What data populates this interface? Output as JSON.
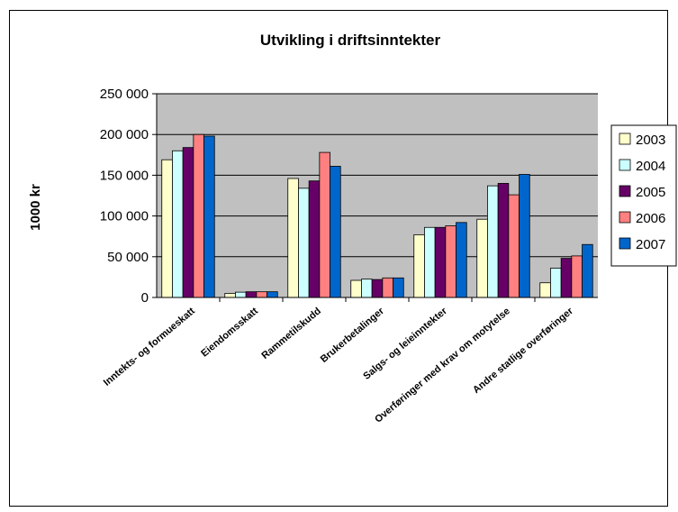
{
  "chart_data": {
    "type": "bar",
    "title": "Utvikling i driftsinntekter",
    "xlabel": "",
    "ylabel": "1000 kr",
    "ylim": [
      0,
      250000
    ],
    "yticks": [
      0,
      50000,
      100000,
      150000,
      200000,
      250000
    ],
    "ytick_labels": [
      "0",
      "50 000",
      "100 000",
      "150 000",
      "200 000",
      "250 000"
    ],
    "grid": true,
    "legend_position": "right",
    "plot_background": "#c0c0c0",
    "categories": [
      "Inntekts- og formueskatt",
      "Eiendomsskatt",
      "Rammetilskudd",
      "Brukerbetalinger",
      "Salgs- og leieinntekter",
      "Overføringer med krav om motytelse",
      "Andre statlige overføringer"
    ],
    "series": [
      {
        "name": "2003",
        "color": "#ffffcc",
        "values": [
          169000,
          5000,
          146000,
          21000,
          77000,
          96000,
          18000
        ]
      },
      {
        "name": "2004",
        "color": "#ccffff",
        "values": [
          180000,
          6500,
          134000,
          22500,
          86000,
          137000,
          36000
        ]
      },
      {
        "name": "2005",
        "color": "#660066",
        "values": [
          184000,
          7000,
          143000,
          22000,
          86000,
          140000,
          48000
        ]
      },
      {
        "name": "2006",
        "color": "#ff8080",
        "values": [
          200000,
          7000,
          178000,
          24000,
          88000,
          126000,
          51000
        ]
      },
      {
        "name": "2007",
        "color": "#0066cc",
        "values": [
          198000,
          7000,
          161000,
          24000,
          92000,
          151000,
          65000
        ]
      }
    ]
  }
}
